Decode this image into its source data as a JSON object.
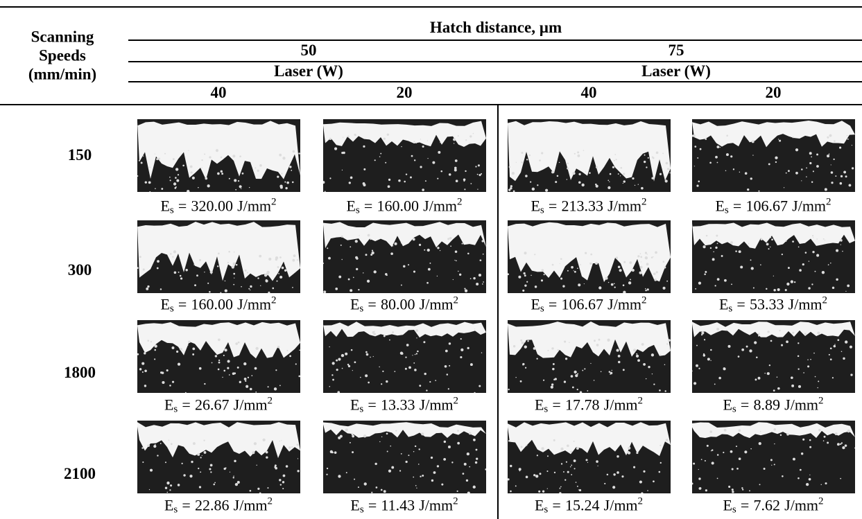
{
  "header": {
    "row_label": [
      "Scanning",
      "Speeds",
      "(mm/min)"
    ],
    "group_title": "Hatch distance, µm",
    "hatch": [
      "50",
      "75"
    ],
    "laser_label": "Laser (W)",
    "laser": [
      "40",
      "20",
      "40",
      "20"
    ]
  },
  "caption_parts": {
    "symbol": "E",
    "subscript": "s",
    "equals": "=",
    "unit": "J/mm",
    "superscript": "2"
  },
  "rows": [
    {
      "speed": "150",
      "energies": [
        "320.00",
        "160.00",
        "213.33",
        "106.67"
      ]
    },
    {
      "speed": "300",
      "energies": [
        "160.00",
        "80.00",
        "106.67",
        "53.33"
      ]
    },
    {
      "speed": "1800",
      "energies": [
        "26.67",
        "13.33",
        "17.78",
        "8.89"
      ]
    },
    {
      "speed": "2100",
      "energies": [
        "22.86",
        "11.43",
        "15.24",
        "7.62"
      ]
    }
  ]
}
